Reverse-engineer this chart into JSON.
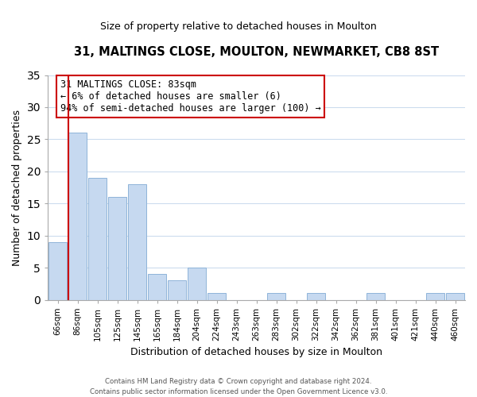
{
  "title": "31, MALTINGS CLOSE, MOULTON, NEWMARKET, CB8 8ST",
  "subtitle": "Size of property relative to detached houses in Moulton",
  "xlabel": "Distribution of detached houses by size in Moulton",
  "ylabel": "Number of detached properties",
  "bar_labels": [
    "66sqm",
    "86sqm",
    "105sqm",
    "125sqm",
    "145sqm",
    "165sqm",
    "184sqm",
    "204sqm",
    "224sqm",
    "243sqm",
    "263sqm",
    "283sqm",
    "302sqm",
    "322sqm",
    "342sqm",
    "362sqm",
    "381sqm",
    "401sqm",
    "421sqm",
    "440sqm",
    "460sqm"
  ],
  "bar_values": [
    9,
    26,
    19,
    16,
    18,
    4,
    3,
    5,
    1,
    0,
    0,
    1,
    0,
    1,
    0,
    0,
    1,
    0,
    0,
    1,
    1
  ],
  "bar_color": "#c6d9f0",
  "bar_edge_color": "#8fb4d9",
  "highlight_line_color": "#cc0000",
  "ylim": [
    0,
    35
  ],
  "yticks": [
    0,
    5,
    10,
    15,
    20,
    25,
    30,
    35
  ],
  "annotation_title": "31 MALTINGS CLOSE: 83sqm",
  "annotation_line1": "← 6% of detached houses are smaller (6)",
  "annotation_line2": "94% of semi-detached houses are larger (100) →",
  "annotation_box_color": "#ffffff",
  "annotation_box_edge": "#cc0000",
  "footer_line1": "Contains HM Land Registry data © Crown copyright and database right 2024.",
  "footer_line2": "Contains public sector information licensed under the Open Government Licence v3.0.",
  "grid_color": "#ccdcee",
  "background_color": "#ffffff"
}
